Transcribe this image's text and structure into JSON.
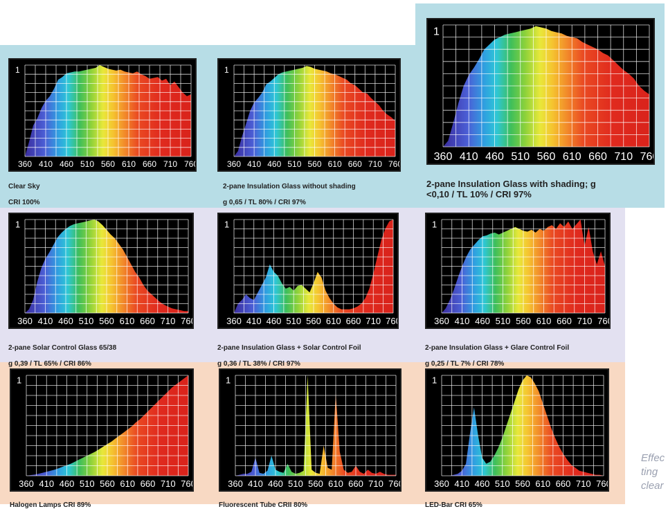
{
  "footnote": {
    "lines": [
      "Effec",
      "ting",
      "clear"
    ]
  },
  "chart_data": [
    {
      "type": "area",
      "title": "Clear Sky",
      "subtitle": "CRI 100%",
      "x_ticks": [
        "360",
        "410",
        "460",
        "510",
        "560",
        "610",
        "660",
        "710",
        "760"
      ],
      "ylabel_tick": "1",
      "xlim": [
        360,
        760
      ],
      "ylim": [
        0,
        1
      ],
      "x": [
        360,
        370,
        380,
        390,
        400,
        410,
        420,
        430,
        440,
        450,
        460,
        470,
        480,
        490,
        500,
        510,
        520,
        530,
        540,
        550,
        560,
        570,
        580,
        590,
        600,
        610,
        620,
        630,
        640,
        650,
        660,
        670,
        680,
        690,
        700,
        710,
        720,
        730,
        740,
        750,
        760
      ],
      "values": [
        0,
        0.16,
        0.34,
        0.42,
        0.53,
        0.61,
        0.66,
        0.74,
        0.84,
        0.87,
        0.91,
        0.92,
        0.93,
        0.93,
        0.94,
        0.95,
        0.96,
        0.97,
        1.0,
        0.98,
        0.96,
        0.95,
        0.94,
        0.95,
        0.93,
        0.92,
        0.91,
        0.93,
        0.9,
        0.88,
        0.85,
        0.86,
        0.87,
        0.83,
        0.85,
        0.78,
        0.82,
        0.76,
        0.7,
        0.66,
        0.68
      ]
    },
    {
      "type": "area",
      "title": "2-pane Insulation Glass without shading",
      "subtitle": "g 0,65 / TL 80% / CRI 97%",
      "x_ticks": [
        "360",
        "410",
        "460",
        "510",
        "560",
        "610",
        "660",
        "710",
        "760"
      ],
      "ylabel_tick": "1",
      "xlim": [
        360,
        760
      ],
      "ylim": [
        0,
        1
      ],
      "x": [
        360,
        370,
        380,
        390,
        400,
        410,
        420,
        430,
        440,
        450,
        460,
        470,
        480,
        490,
        500,
        510,
        520,
        530,
        540,
        550,
        560,
        570,
        580,
        590,
        600,
        610,
        620,
        630,
        640,
        650,
        660,
        670,
        680,
        690,
        700,
        710,
        720,
        730,
        740,
        750,
        760
      ],
      "values": [
        0,
        0.06,
        0.22,
        0.36,
        0.5,
        0.59,
        0.64,
        0.7,
        0.79,
        0.82,
        0.86,
        0.9,
        0.92,
        0.93,
        0.94,
        0.95,
        0.96,
        0.97,
        0.99,
        0.98,
        0.96,
        0.95,
        0.94,
        0.93,
        0.91,
        0.9,
        0.88,
        0.86,
        0.84,
        0.8,
        0.78,
        0.74,
        0.7,
        0.69,
        0.64,
        0.6,
        0.56,
        0.5,
        0.46,
        0.43,
        0.39
      ]
    },
    {
      "type": "area",
      "title": "2-pane Insulation Glass with  shading; g\n<0,10 / TL 10% / CRI 97%",
      "subtitle": "",
      "x_ticks": [
        "360",
        "410",
        "460",
        "510",
        "560",
        "610",
        "660",
        "710",
        "760"
      ],
      "ylabel_tick": "1",
      "xlim": [
        360,
        760
      ],
      "ylim": [
        0,
        1
      ],
      "x": [
        360,
        370,
        380,
        390,
        400,
        410,
        420,
        430,
        440,
        450,
        460,
        470,
        480,
        490,
        500,
        510,
        520,
        530,
        540,
        550,
        560,
        570,
        580,
        590,
        600,
        610,
        620,
        630,
        640,
        650,
        660,
        670,
        680,
        690,
        700,
        710,
        720,
        730,
        740,
        750,
        760
      ],
      "values": [
        0,
        0.05,
        0.2,
        0.36,
        0.5,
        0.59,
        0.65,
        0.72,
        0.8,
        0.84,
        0.88,
        0.9,
        0.92,
        0.93,
        0.94,
        0.95,
        0.96,
        0.97,
        0.99,
        0.98,
        0.97,
        0.95,
        0.94,
        0.93,
        0.91,
        0.9,
        0.89,
        0.86,
        0.84,
        0.82,
        0.8,
        0.77,
        0.75,
        0.71,
        0.67,
        0.63,
        0.6,
        0.56,
        0.5,
        0.46,
        0.43
      ]
    },
    {
      "type": "area",
      "title": "2-pane Solar Control Glass  65/38",
      "subtitle": "g 0,39 / TL 65% / CRI 86%",
      "x_ticks": [
        "360",
        "410",
        "460",
        "510",
        "560",
        "610",
        "660",
        "710",
        "760"
      ],
      "ylabel_tick": "1",
      "xlim": [
        360,
        760
      ],
      "ylim": [
        0,
        1
      ],
      "x": [
        360,
        370,
        380,
        390,
        400,
        410,
        420,
        430,
        440,
        450,
        460,
        470,
        480,
        490,
        500,
        510,
        520,
        530,
        540,
        550,
        560,
        570,
        580,
        590,
        600,
        610,
        620,
        630,
        640,
        650,
        660,
        670,
        680,
        690,
        700,
        710,
        720,
        730,
        740,
        750,
        760
      ],
      "values": [
        0,
        0.04,
        0.14,
        0.33,
        0.48,
        0.58,
        0.65,
        0.73,
        0.81,
        0.86,
        0.9,
        0.93,
        0.95,
        0.96,
        0.97,
        0.98,
        0.99,
        1.0,
        0.98,
        0.94,
        0.89,
        0.84,
        0.8,
        0.74,
        0.68,
        0.6,
        0.52,
        0.44,
        0.38,
        0.3,
        0.24,
        0.2,
        0.16,
        0.12,
        0.09,
        0.07,
        0.05,
        0.04,
        0.03,
        0.02,
        0.02
      ]
    },
    {
      "type": "area",
      "title": "2-pane Insulation Glass + Solar Control Foil",
      "subtitle": "g 0,36 / TL 38% / CRI 97%",
      "x_ticks": [
        "360",
        "410",
        "460",
        "510",
        "560",
        "610",
        "660",
        "710",
        "760"
      ],
      "ylabel_tick": "1",
      "xlim": [
        360,
        760
      ],
      "ylim": [
        0,
        1
      ],
      "x": [
        360,
        370,
        380,
        390,
        400,
        410,
        420,
        430,
        440,
        450,
        460,
        470,
        480,
        490,
        500,
        510,
        520,
        530,
        540,
        550,
        560,
        570,
        580,
        590,
        600,
        610,
        620,
        630,
        640,
        650,
        660,
        670,
        680,
        690,
        700,
        710,
        720,
        730,
        740,
        750,
        760
      ],
      "values": [
        0,
        0.1,
        0.14,
        0.2,
        0.16,
        0.14,
        0.22,
        0.3,
        0.38,
        0.52,
        0.44,
        0.4,
        0.32,
        0.26,
        0.28,
        0.24,
        0.29,
        0.3,
        0.26,
        0.22,
        0.32,
        0.44,
        0.38,
        0.24,
        0.16,
        0.1,
        0.06,
        0.04,
        0.04,
        0.04,
        0.05,
        0.07,
        0.1,
        0.16,
        0.26,
        0.42,
        0.6,
        0.78,
        0.9,
        0.98,
        1.0
      ]
    },
    {
      "type": "area",
      "title": "2-pane Insulation Glass + Glare Control Foil",
      "subtitle": "g 0,25 / TL 7% / CRI 78%",
      "x_ticks": [
        "360",
        "410",
        "460",
        "510",
        "560",
        "610",
        "660",
        "710",
        "760"
      ],
      "ylabel_tick": "1",
      "xlim": [
        360,
        760
      ],
      "ylim": [
        0,
        1
      ],
      "x": [
        360,
        370,
        380,
        390,
        400,
        410,
        420,
        430,
        440,
        450,
        460,
        470,
        480,
        490,
        500,
        510,
        520,
        530,
        540,
        550,
        560,
        570,
        580,
        590,
        600,
        610,
        620,
        630,
        640,
        650,
        660,
        670,
        680,
        690,
        700,
        710,
        720,
        730,
        740,
        750,
        760
      ],
      "values": [
        0,
        0.05,
        0.14,
        0.25,
        0.38,
        0.5,
        0.6,
        0.68,
        0.73,
        0.78,
        0.82,
        0.83,
        0.85,
        0.86,
        0.84,
        0.86,
        0.88,
        0.9,
        0.92,
        0.9,
        0.88,
        0.87,
        0.89,
        0.86,
        0.9,
        0.88,
        0.92,
        0.94,
        0.9,
        0.96,
        0.92,
        0.98,
        0.9,
        0.95,
        1.0,
        0.72,
        0.92,
        0.66,
        0.52,
        0.66,
        0.5
      ]
    },
    {
      "type": "area",
      "title": "Halogen Lamps  CRI 89%",
      "subtitle": "",
      "x_ticks": [
        "360",
        "410",
        "460",
        "510",
        "560",
        "610",
        "660",
        "710",
        "760"
      ],
      "ylabel_tick": "1",
      "xlim": [
        360,
        760
      ],
      "ylim": [
        0,
        1
      ],
      "x": [
        360,
        370,
        380,
        390,
        400,
        410,
        420,
        430,
        440,
        450,
        460,
        470,
        480,
        490,
        500,
        510,
        520,
        530,
        540,
        550,
        560,
        570,
        580,
        590,
        600,
        610,
        620,
        630,
        640,
        650,
        660,
        670,
        680,
        690,
        700,
        710,
        720,
        730,
        740,
        750,
        760
      ],
      "values": [
        0,
        0.006,
        0.012,
        0.02,
        0.03,
        0.04,
        0.05,
        0.06,
        0.075,
        0.09,
        0.105,
        0.12,
        0.14,
        0.16,
        0.18,
        0.2,
        0.22,
        0.24,
        0.265,
        0.29,
        0.315,
        0.34,
        0.37,
        0.4,
        0.43,
        0.46,
        0.49,
        0.53,
        0.56,
        0.6,
        0.64,
        0.68,
        0.72,
        0.76,
        0.8,
        0.84,
        0.88,
        0.91,
        0.94,
        0.97,
        1.0
      ]
    },
    {
      "type": "area",
      "title": "Fluorescent Tube CRII 80%",
      "subtitle": "",
      "x_ticks": [
        "360",
        "410",
        "460",
        "510",
        "560",
        "610",
        "660",
        "710",
        "760"
      ],
      "ylabel_tick": "1",
      "xlim": [
        360,
        760
      ],
      "ylim": [
        0,
        1
      ],
      "x": [
        360,
        370,
        380,
        390,
        400,
        410,
        420,
        430,
        440,
        450,
        460,
        470,
        480,
        490,
        500,
        510,
        520,
        530,
        540,
        550,
        560,
        570,
        580,
        590,
        600,
        610,
        620,
        630,
        640,
        650,
        660,
        670,
        680,
        690,
        700,
        710,
        720,
        730,
        740,
        750,
        760
      ],
      "values": [
        0,
        0.01,
        0.02,
        0.02,
        0.04,
        0.18,
        0.03,
        0.02,
        0.05,
        0.2,
        0.06,
        0.04,
        0.03,
        0.12,
        0.04,
        0.02,
        0.03,
        0.05,
        1.0,
        0.06,
        0.03,
        0.02,
        0.3,
        0.08,
        0.06,
        0.82,
        0.24,
        0.06,
        0.03,
        0.04,
        0.1,
        0.04,
        0.02,
        0.06,
        0.03,
        0.02,
        0.04,
        0.02,
        0.01,
        0.01,
        0.01
      ]
    },
    {
      "type": "area",
      "title": "LED-Bar  CRI 65%",
      "subtitle": "",
      "x_ticks": [
        "360",
        "410",
        "460",
        "510",
        "560",
        "610",
        "660",
        "710",
        "760"
      ],
      "ylabel_tick": "1",
      "xlim": [
        360,
        760
      ],
      "ylim": [
        0,
        1
      ],
      "x": [
        360,
        370,
        380,
        390,
        400,
        410,
        420,
        430,
        440,
        450,
        460,
        470,
        480,
        490,
        500,
        510,
        520,
        530,
        540,
        550,
        560,
        570,
        580,
        590,
        600,
        610,
        620,
        630,
        640,
        650,
        660,
        670,
        680,
        690,
        700,
        710,
        720,
        730,
        740,
        750,
        760
      ],
      "values": [
        0,
        0.0,
        0.0,
        0.01,
        0.02,
        0.05,
        0.12,
        0.42,
        0.68,
        0.4,
        0.18,
        0.12,
        0.14,
        0.2,
        0.28,
        0.38,
        0.5,
        0.62,
        0.74,
        0.86,
        0.95,
        1.0,
        0.98,
        0.92,
        0.84,
        0.72,
        0.6,
        0.48,
        0.38,
        0.29,
        0.22,
        0.16,
        0.11,
        0.08,
        0.05,
        0.04,
        0.03,
        0.02,
        0.01,
        0.01,
        0.0
      ]
    }
  ]
}
